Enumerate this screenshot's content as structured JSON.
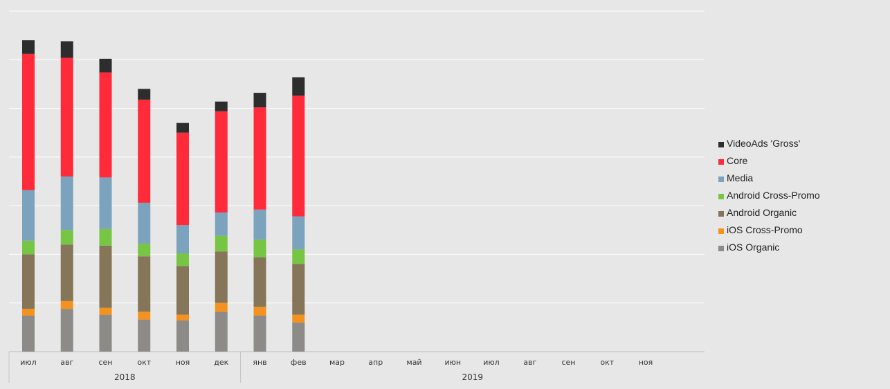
{
  "chart_data": {
    "type": "bar",
    "stacked": true,
    "title": "",
    "xlabel": "",
    "ylabel": "",
    "ylim": [
      0,
      350
    ],
    "grid": true,
    "categories": [
      "июл",
      "авг",
      "сен",
      "окт",
      "ноя",
      "дек",
      "янв",
      "фев",
      "мар",
      "апр",
      "май",
      "июн",
      "июл",
      "авг",
      "сен",
      "окт",
      "ноя"
    ],
    "year_groups": [
      {
        "label": "2018",
        "start": 0,
        "end": 5
      },
      {
        "label": "2019",
        "start": 6,
        "end": 16
      }
    ],
    "legend_position": "right",
    "series": [
      {
        "name": "iOS Organic",
        "color": "#8c8b87",
        "values": [
          37,
          44,
          38,
          33,
          32,
          41,
          37,
          30,
          null,
          null,
          null,
          null,
          null,
          null,
          null,
          null,
          null
        ]
      },
      {
        "name": "iOS Cross-Promo",
        "color": "#f5921e",
        "values": [
          7,
          8,
          7,
          8,
          6,
          9,
          9,
          8,
          null,
          null,
          null,
          null,
          null,
          null,
          null,
          null,
          null
        ]
      },
      {
        "name": "Android Organic",
        "color": "#857559",
        "values": [
          56,
          58,
          64,
          57,
          50,
          53,
          51,
          52,
          null,
          null,
          null,
          null,
          null,
          null,
          null,
          null,
          null
        ]
      },
      {
        "name": "Android Cross-Promo",
        "color": "#77c544",
        "values": [
          14,
          15,
          17,
          13,
          13,
          16,
          18,
          15,
          null,
          null,
          null,
          null,
          null,
          null,
          null,
          null,
          null
        ]
      },
      {
        "name": "Media",
        "color": "#7ba3bd",
        "values": [
          52,
          55,
          53,
          42,
          29,
          24,
          31,
          34,
          null,
          null,
          null,
          null,
          null,
          null,
          null,
          null,
          null
        ]
      },
      {
        "name": "Core",
        "color": "#ff2a3a",
        "values": [
          140,
          122,
          108,
          106,
          95,
          104,
          105,
          124,
          null,
          null,
          null,
          null,
          null,
          null,
          null,
          null,
          null
        ]
      },
      {
        "name": "VideoAds 'Gross'",
        "color": "#2d2d2d",
        "values": [
          14,
          17,
          14,
          11,
          10,
          10,
          15,
          19,
          null,
          null,
          null,
          null,
          null,
          null,
          null,
          null,
          null
        ]
      }
    ],
    "legend_order": [
      "VideoAds 'Gross'",
      "Core",
      "Media",
      "Android Cross-Promo",
      "Android Organic",
      "iOS Cross-Promo",
      "iOS Organic"
    ]
  }
}
